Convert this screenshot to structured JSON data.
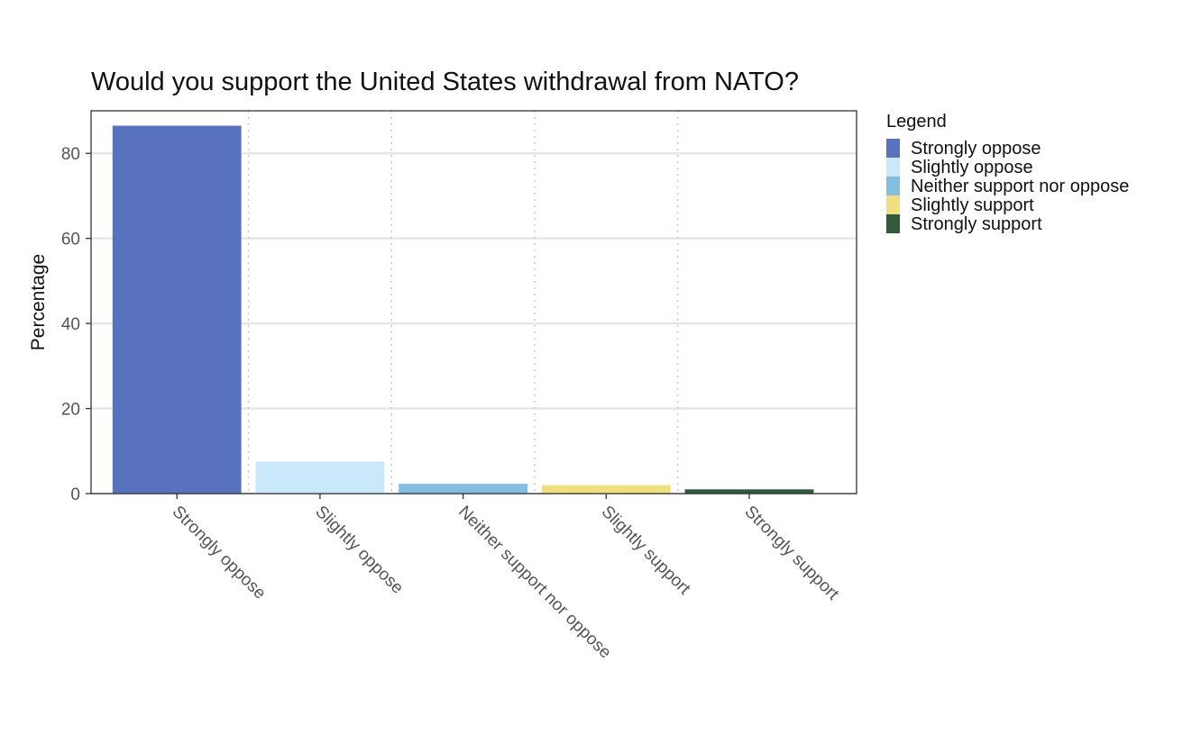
{
  "chart_data": {
    "type": "bar",
    "title": "Would you support the United States withdrawal from NATO?",
    "xlabel": "",
    "ylabel": "Percentage",
    "categories": [
      "Strongly oppose",
      "Slightly oppose",
      "Neither support nor oppose",
      "Slightly support",
      "Strongly support"
    ],
    "values": [
      86.5,
      7.5,
      2.3,
      2.0,
      1.0
    ],
    "colors": [
      "#5872bd",
      "#c9e9fb",
      "#83bde0",
      "#efdf7f",
      "#2f5a3e"
    ],
    "ylim": [
      0,
      90
    ],
    "yticks": [
      0,
      20,
      40,
      60,
      80
    ],
    "ytick_labels": [
      "0",
      "20",
      "40",
      "60",
      "80"
    ],
    "grid": true,
    "legend": {
      "title": "Legend",
      "placement": "right",
      "entries": [
        "Strongly oppose",
        "Slightly oppose",
        "Neither support nor oppose",
        "Slightly support",
        "Strongly support"
      ]
    }
  }
}
